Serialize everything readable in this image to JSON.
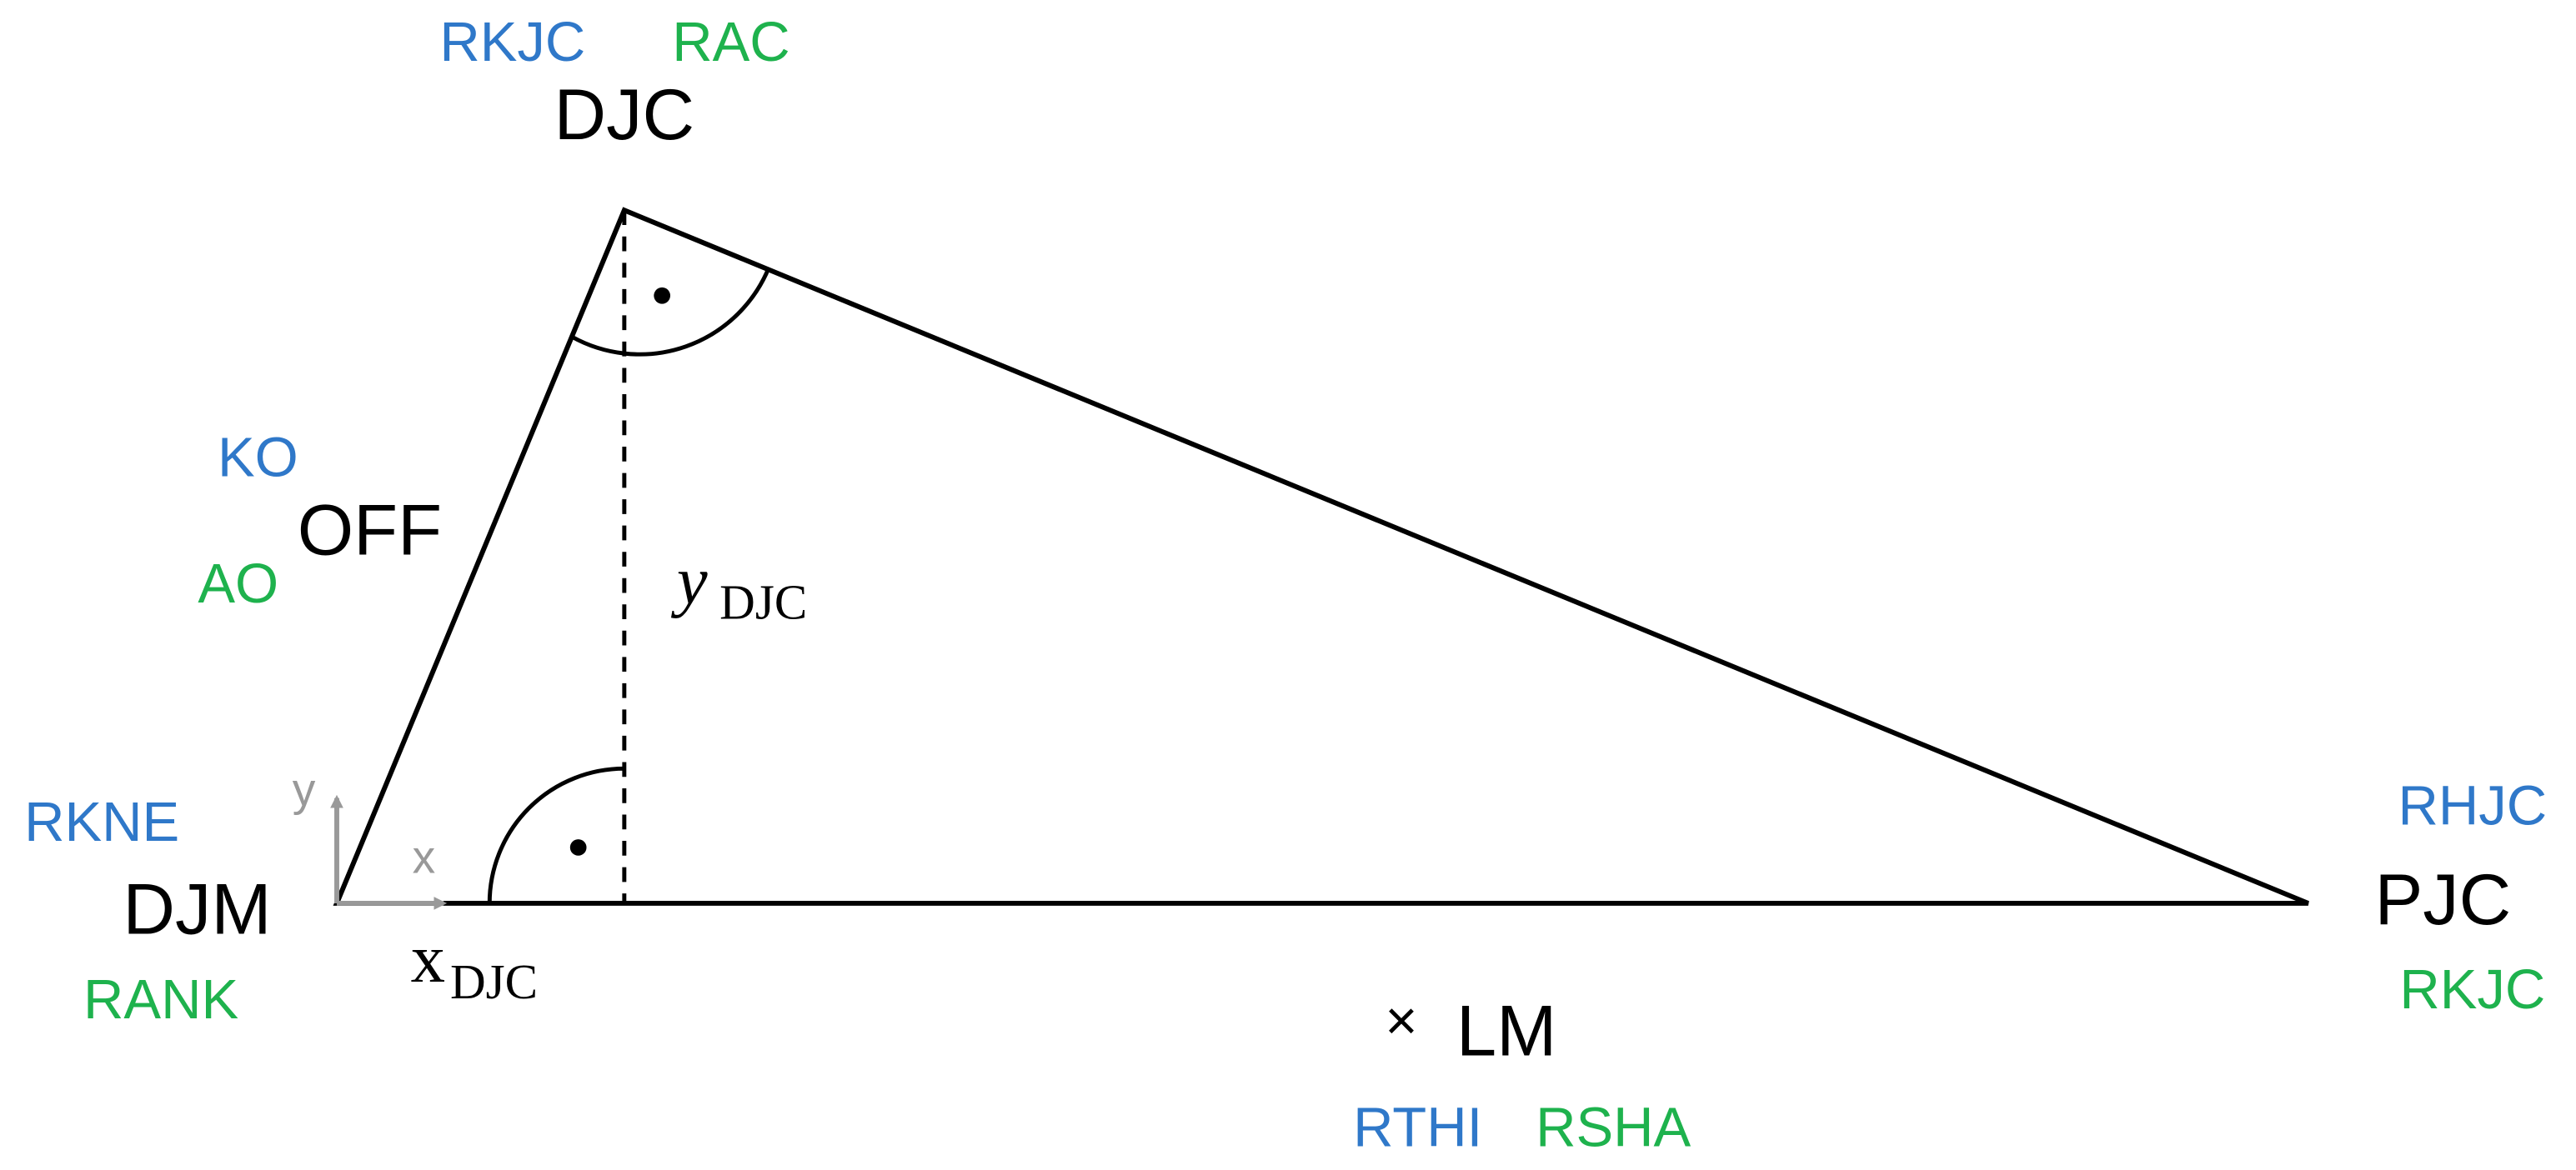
{
  "points": [
    {
      "label": "DJC",
      "markers": [
        "RKJC",
        "RAC"
      ]
    },
    {
      "label": "OFF",
      "markers": [
        "KO",
        "AO"
      ]
    },
    {
      "label": "DJM",
      "markers": [
        "RKNE",
        "RANK"
      ]
    },
    {
      "label": "PJC",
      "markers": [
        "RHJC",
        "RKJC"
      ]
    },
    {
      "label": "LM",
      "symbol": "×",
      "markers": [
        "RTHI",
        "RSHA"
      ]
    }
  ],
  "axes": {
    "x": "x",
    "y": "y"
  },
  "coordinates": [
    {
      "symbol": "y",
      "subscript": "DJC"
    },
    {
      "symbol": "x",
      "subscript": "DJC"
    }
  ]
}
